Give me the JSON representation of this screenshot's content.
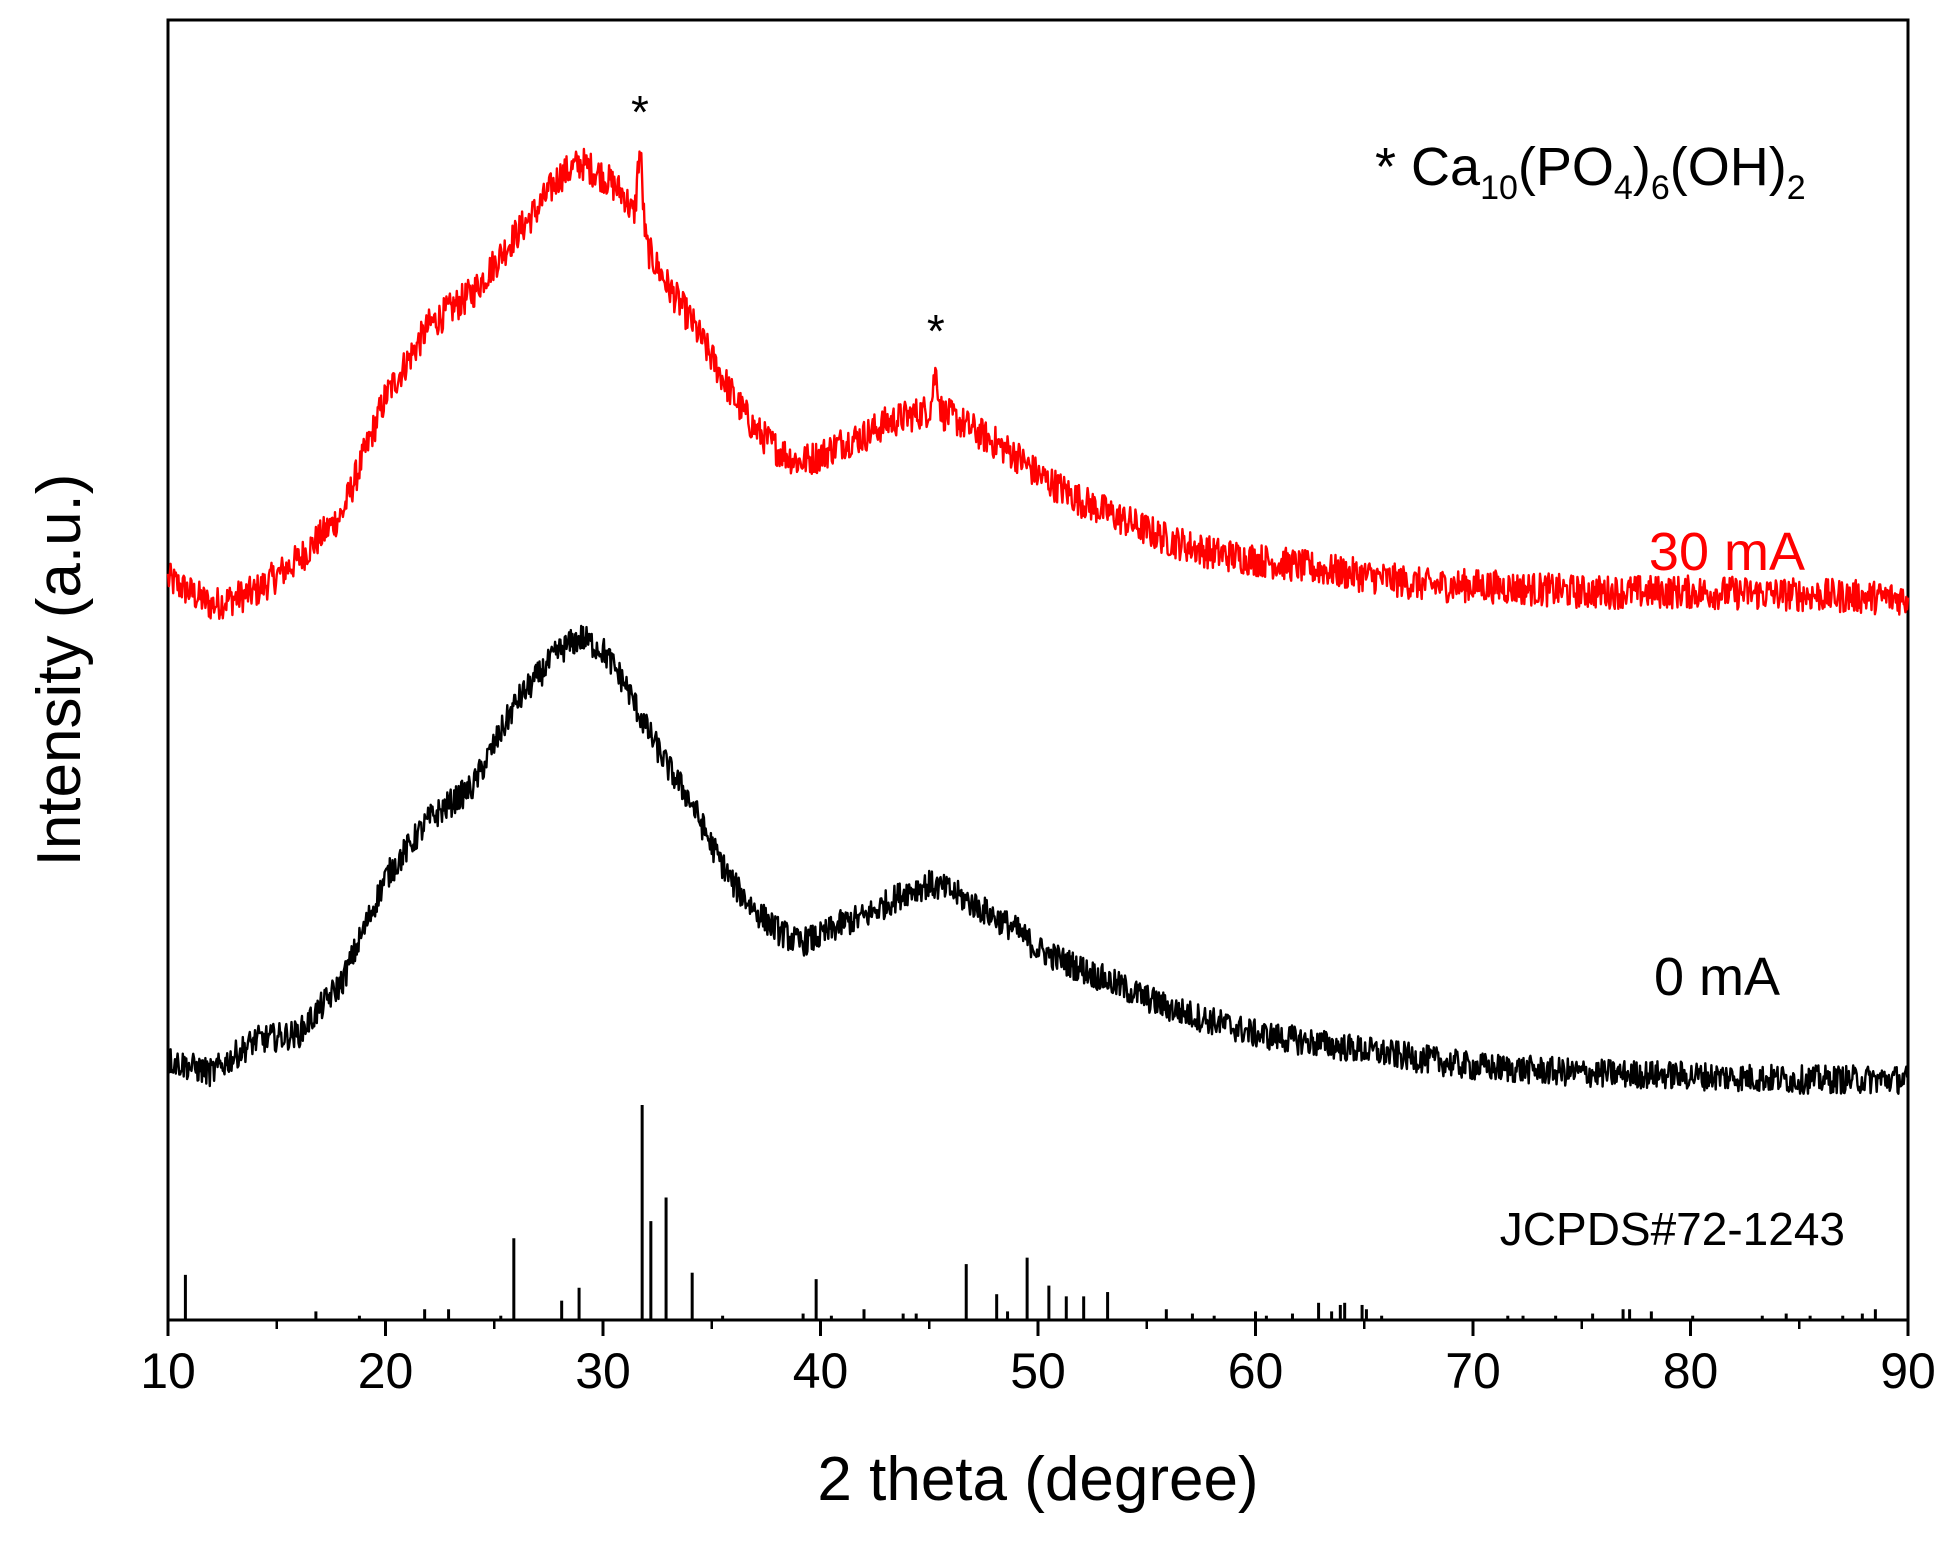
{
  "chart_data": {
    "type": "line",
    "title": "",
    "xlabel": "2 theta (degree)",
    "ylabel": "Intensity (a.u.)",
    "xlim": [
      10,
      90
    ],
    "ylim": [
      0,
      100
    ],
    "y_ticks_shown": false,
    "x_ticks": [
      10,
      20,
      30,
      40,
      50,
      60,
      70,
      80,
      90
    ],
    "x_tick_labels": [
      "10",
      "20",
      "30",
      "40",
      "50",
      "60",
      "70",
      "80",
      "90"
    ],
    "legend": {
      "marker": "*",
      "formula_parts": [
        {
          "text": "Ca",
          "sub": false
        },
        {
          "text": "10",
          "sub": true
        },
        {
          "text": "(PO",
          "sub": false
        },
        {
          "text": "4",
          "sub": true
        },
        {
          "text": ")",
          "sub": false
        },
        {
          "text": "6",
          "sub": true
        },
        {
          "text": "(OH)",
          "sub": false
        },
        {
          "text": "2",
          "sub": true
        }
      ],
      "position": "top-right"
    },
    "series": [
      {
        "name": "30 mA",
        "color": "#ff0000",
        "noise": 1.3,
        "x": [
          10,
          12,
          14,
          16,
          18,
          20,
          22,
          24,
          26,
          27,
          28,
          29,
          30,
          31,
          32,
          33,
          34,
          35,
          36,
          37,
          38,
          39,
          40,
          41,
          42,
          43,
          44,
          45,
          46,
          47,
          48,
          49,
          50,
          52,
          54,
          56,
          58,
          60,
          62,
          64,
          66,
          68,
          70,
          75,
          80,
          85,
          90
        ],
        "y": [
          57.0,
          55.0,
          56.0,
          58.5,
          62.0,
          71.0,
          76.5,
          79.0,
          83.5,
          85.5,
          88.0,
          89.0,
          88.0,
          86.5,
          82.5,
          79.5,
          77.0,
          74.0,
          71.0,
          68.5,
          67.0,
          66.0,
          66.5,
          67.5,
          68.0,
          69.0,
          69.5,
          70.0,
          69.5,
          68.5,
          67.5,
          66.5,
          65.0,
          63.0,
          61.5,
          60.0,
          59.0,
          58.5,
          58.0,
          57.5,
          57.0,
          56.5,
          56.5,
          56.0,
          56.0,
          55.8,
          55.5
        ]
      },
      {
        "name": "0 mA",
        "color": "#000000",
        "noise": 1.1,
        "x": [
          10,
          12,
          14,
          16,
          18,
          20,
          22,
          24,
          26,
          27,
          28,
          29,
          30,
          31,
          32,
          33,
          34,
          35,
          36,
          37,
          38,
          39,
          40,
          41,
          42,
          43,
          44,
          45,
          46,
          47,
          48,
          49,
          50,
          52,
          54,
          56,
          58,
          60,
          62,
          64,
          66,
          68,
          70,
          75,
          80,
          85,
          90
        ],
        "y": [
          20.0,
          19.0,
          21.5,
          22.0,
          26.0,
          34.0,
          38.5,
          41.0,
          47.5,
          49.5,
          51.5,
          52.5,
          51.5,
          49.0,
          45.5,
          42.5,
          40.0,
          36.5,
          33.5,
          31.5,
          30.0,
          29.0,
          29.5,
          30.5,
          31.0,
          32.0,
          33.0,
          33.5,
          33.0,
          32.0,
          31.0,
          30.0,
          28.5,
          27.0,
          25.5,
          24.0,
          23.0,
          22.0,
          21.5,
          21.0,
          20.5,
          20.0,
          19.5,
          19.0,
          18.8,
          18.5,
          18.5
        ]
      }
    ],
    "peak_markers": [
      {
        "x": 31.7,
        "series": "30 mA",
        "height": 6.0,
        "label": "*"
      },
      {
        "x": 45.3,
        "series": "30 mA",
        "height": 3.0,
        "label": "*"
      }
    ],
    "reference": {
      "name": "JCPDS#72-1243",
      "type": "stick",
      "color": "#000000",
      "baseline": 0,
      "positions": [
        10.8,
        16.8,
        18.8,
        21.8,
        22.9,
        25.3,
        25.9,
        28.1,
        28.9,
        31.8,
        32.2,
        32.9,
        34.1,
        35.5,
        39.2,
        39.8,
        40.5,
        42.0,
        43.8,
        44.4,
        46.7,
        48.1,
        48.6,
        49.5,
        50.5,
        51.3,
        52.1,
        53.2,
        55.9,
        57.1,
        58.1,
        60.0,
        60.5,
        61.7,
        62.9,
        63.5,
        63.9,
        64.1,
        64.9,
        65.1,
        65.8,
        71.6,
        72.3,
        73.8,
        75.5,
        76.9,
        77.2,
        78.2,
        80.1,
        83.3,
        84.4,
        85.5,
        87.0,
        87.9,
        88.5
      ],
      "intensities": [
        21,
        4,
        2,
        5,
        5,
        2,
        38,
        9,
        15,
        100,
        46,
        57,
        22,
        2,
        3,
        19,
        2,
        5,
        3,
        3,
        26,
        12,
        4,
        29,
        16,
        11,
        11,
        13,
        5,
        3,
        2,
        4,
        2,
        3,
        8,
        4,
        7,
        8,
        7,
        5,
        2,
        2,
        2,
        2,
        3,
        5,
        5,
        4,
        2,
        2,
        3,
        2,
        2,
        3,
        5
      ]
    },
    "series_label_positions": {
      "30 mA": "right",
      "0 mA": "right"
    },
    "reference_label_position": "right"
  }
}
